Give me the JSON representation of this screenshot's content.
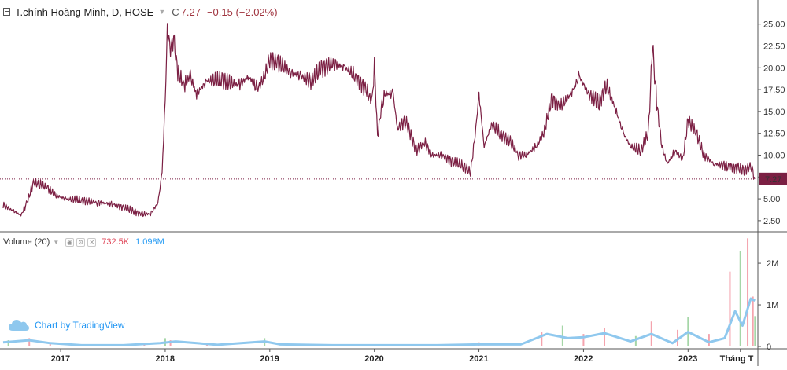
{
  "legend": {
    "title": "T.chính Hoàng Minh, D, HOSE",
    "close_label": "C",
    "close": "7.27",
    "change": "−0.15 (−2.02%)"
  },
  "volume_legend": {
    "title": "Volume (20)",
    "value": "732.5K",
    "ma_value": "1.098M"
  },
  "branding": {
    "text": "Chart by TradingView"
  },
  "colors": {
    "price_line": "#7b1f43",
    "volume_up": "#a5d6a7",
    "volume_down": "#f4a3ad",
    "volume_ma": "#8fc8ee",
    "price_badge": "#7b1f43"
  },
  "chart_data": [
    {
      "type": "line",
      "title": "T.chính Hoàng Minh, D, HOSE",
      "x_ticks": [
        "2017",
        "2018",
        "2019",
        "2020",
        "2021",
        "2022",
        "2023",
        "Tháng T"
      ],
      "y_ticks": [
        "2.50",
        "5.00",
        "7.50",
        "10.00",
        "12.50",
        "15.00",
        "17.50",
        "20.00",
        "22.50",
        "25.00"
      ],
      "ylim": [
        1.5,
        26.5
      ],
      "last_price": "7.27",
      "series": [
        {
          "points": [
            [
              2016.45,
              4.3
            ],
            [
              2016.55,
              3.6
            ],
            [
              2016.62,
              3.1
            ],
            [
              2016.68,
              4.6
            ],
            [
              2016.74,
              6.8
            ],
            [
              2016.8,
              6.7
            ],
            [
              2016.88,
              6.2
            ],
            [
              2016.95,
              5.4
            ],
            [
              2017.05,
              5.0
            ],
            [
              2017.2,
              4.8
            ],
            [
              2017.35,
              4.6
            ],
            [
              2017.5,
              4.4
            ],
            [
              2017.6,
              4.0
            ],
            [
              2017.7,
              3.6
            ],
            [
              2017.78,
              3.2
            ],
            [
              2017.86,
              3.3
            ],
            [
              2017.93,
              4.5
            ],
            [
              2017.97,
              8.0
            ],
            [
              2018.0,
              16.0
            ],
            [
              2018.02,
              24.5
            ],
            [
              2018.05,
              22.0
            ],
            [
              2018.08,
              23.5
            ],
            [
              2018.12,
              19.5
            ],
            [
              2018.18,
              18.0
            ],
            [
              2018.24,
              19.0
            ],
            [
              2018.3,
              17.0
            ],
            [
              2018.4,
              18.5
            ],
            [
              2018.55,
              18.5
            ],
            [
              2018.7,
              18.0
            ],
            [
              2018.8,
              19.0
            ],
            [
              2018.88,
              17.5
            ],
            [
              2018.95,
              19.0
            ],
            [
              2019.0,
              21.0
            ],
            [
              2019.08,
              20.5
            ],
            [
              2019.2,
              19.5
            ],
            [
              2019.3,
              19.0
            ],
            [
              2019.4,
              18.5
            ],
            [
              2019.5,
              20.0
            ],
            [
              2019.62,
              20.5
            ],
            [
              2019.72,
              20.0
            ],
            [
              2019.82,
              19.0
            ],
            [
              2019.92,
              17.5
            ],
            [
              2019.98,
              16.0
            ],
            [
              2020.0,
              20.5
            ],
            [
              2020.03,
              12.0
            ],
            [
              2020.06,
              15.0
            ],
            [
              2020.1,
              17.0
            ],
            [
              2020.18,
              17.0
            ],
            [
              2020.22,
              13.0
            ],
            [
              2020.3,
              14.0
            ],
            [
              2020.4,
              10.5
            ],
            [
              2020.48,
              11.5
            ],
            [
              2020.55,
              10.0
            ],
            [
              2020.65,
              10.0
            ],
            [
              2020.75,
              9.2
            ],
            [
              2020.85,
              8.8
            ],
            [
              2020.92,
              8.0
            ],
            [
              2020.97,
              13.0
            ],
            [
              2021.0,
              17.0
            ],
            [
              2021.05,
              11.0
            ],
            [
              2021.12,
              13.5
            ],
            [
              2021.2,
              12.5
            ],
            [
              2021.3,
              11.5
            ],
            [
              2021.38,
              10.0
            ],
            [
              2021.45,
              10.0
            ],
            [
              2021.55,
              11.0
            ],
            [
              2021.62,
              12.5
            ],
            [
              2021.7,
              16.5
            ],
            [
              2021.78,
              15.5
            ],
            [
              2021.88,
              17.0
            ],
            [
              2021.96,
              19.0
            ],
            [
              2022.05,
              17.0
            ],
            [
              2022.15,
              16.0
            ],
            [
              2022.22,
              18.0
            ],
            [
              2022.3,
              15.5
            ],
            [
              2022.38,
              12.5
            ],
            [
              2022.45,
              11.0
            ],
            [
              2022.55,
              10.5
            ],
            [
              2022.62,
              12.5
            ],
            [
              2022.66,
              22.5
            ],
            [
              2022.7,
              16.0
            ],
            [
              2022.75,
              11.0
            ],
            [
              2022.8,
              9.0
            ],
            [
              2022.88,
              10.5
            ],
            [
              2022.95,
              9.5
            ],
            [
              2023.0,
              14.0
            ],
            [
              2023.08,
              12.5
            ],
            [
              2023.15,
              10.0
            ],
            [
              2023.25,
              9.0
            ],
            [
              2023.38,
              8.8
            ],
            [
              2023.48,
              8.5
            ],
            [
              2023.55,
              8.3
            ],
            [
              2023.6,
              8.8
            ],
            [
              2023.64,
              7.3
            ]
          ]
        }
      ]
    },
    {
      "type": "bar",
      "title": "Volume (20)",
      "y_ticks": [
        "0",
        "1M",
        "2M"
      ],
      "ylim": [
        0,
        2.7
      ],
      "series": [
        {
          "name": "Volume",
          "points": [
            [
              2016.5,
              0.15
            ],
            [
              2016.7,
              0.2
            ],
            [
              2016.9,
              0.1
            ],
            [
              2017.2,
              0.05
            ],
            [
              2017.5,
              0.05
            ],
            [
              2017.8,
              0.05
            ],
            [
              2018.0,
              0.2
            ],
            [
              2018.05,
              0.15
            ],
            [
              2018.4,
              0.05
            ],
            [
              2018.95,
              0.2
            ],
            [
              2019.5,
              0.05
            ],
            [
              2020.0,
              0.05
            ],
            [
              2020.5,
              0.04
            ],
            [
              2021.0,
              0.1
            ],
            [
              2021.6,
              0.35
            ],
            [
              2021.8,
              0.5
            ],
            [
              2022.0,
              0.3
            ],
            [
              2022.2,
              0.45
            ],
            [
              2022.5,
              0.25
            ],
            [
              2022.65,
              0.6
            ],
            [
              2022.9,
              0.4
            ],
            [
              2023.0,
              0.7
            ],
            [
              2023.2,
              0.3
            ],
            [
              2023.4,
              1.8
            ],
            [
              2023.5,
              2.3
            ],
            [
              2023.57,
              2.6
            ],
            [
              2023.62,
              1.2
            ],
            [
              2023.64,
              0.73
            ]
          ]
        },
        {
          "name": "MA",
          "points": [
            [
              2016.45,
              0.1
            ],
            [
              2016.7,
              0.15
            ],
            [
              2016.9,
              0.08
            ],
            [
              2017.2,
              0.03
            ],
            [
              2017.6,
              0.03
            ],
            [
              2017.95,
              0.08
            ],
            [
              2018.1,
              0.12
            ],
            [
              2018.5,
              0.04
            ],
            [
              2018.95,
              0.12
            ],
            [
              2019.1,
              0.05
            ],
            [
              2019.6,
              0.03
            ],
            [
              2020.0,
              0.03
            ],
            [
              2020.6,
              0.03
            ],
            [
              2021.0,
              0.05
            ],
            [
              2021.4,
              0.05
            ],
            [
              2021.65,
              0.3
            ],
            [
              2021.85,
              0.2
            ],
            [
              2022.0,
              0.22
            ],
            [
              2022.2,
              0.32
            ],
            [
              2022.45,
              0.12
            ],
            [
              2022.65,
              0.3
            ],
            [
              2022.85,
              0.08
            ],
            [
              2023.0,
              0.35
            ],
            [
              2023.2,
              0.1
            ],
            [
              2023.35,
              0.2
            ],
            [
              2023.45,
              0.85
            ],
            [
              2023.52,
              0.5
            ],
            [
              2023.6,
              1.15
            ],
            [
              2023.64,
              1.1
            ]
          ]
        }
      ]
    }
  ]
}
